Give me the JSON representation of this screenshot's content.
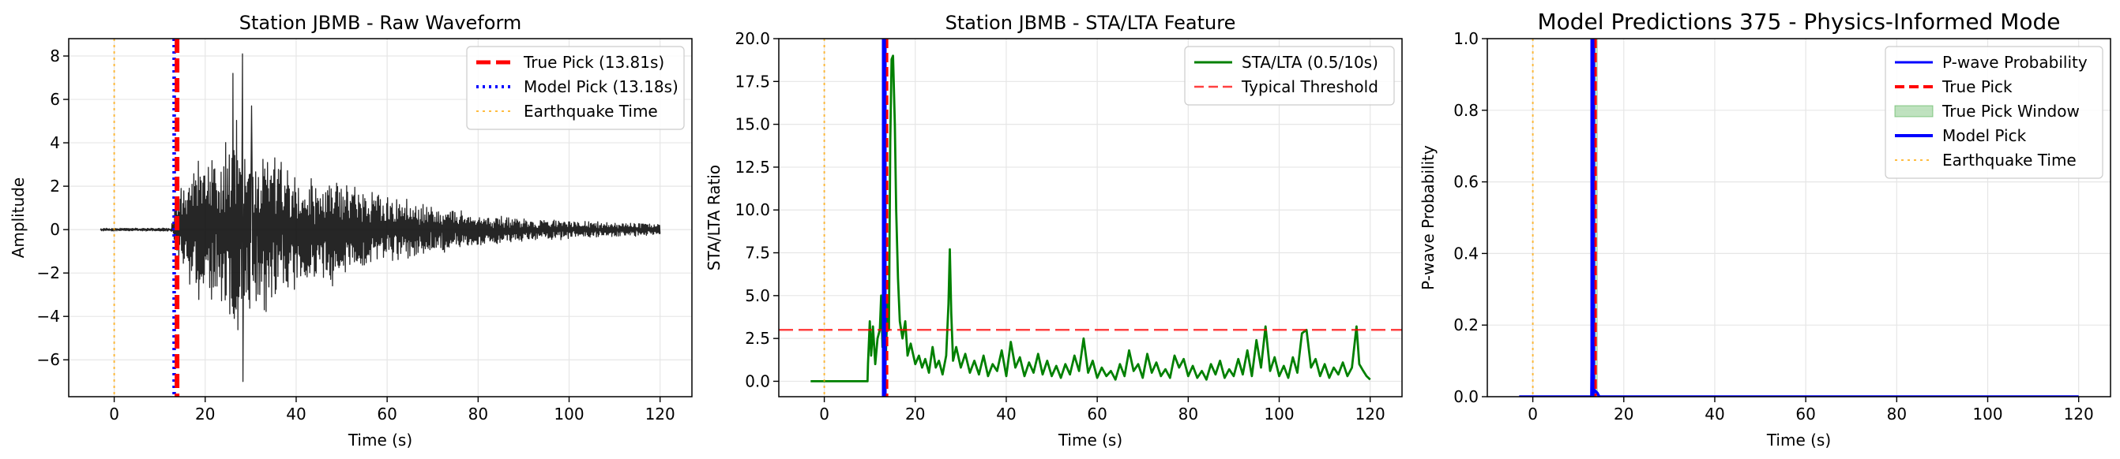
{
  "chart_data": [
    {
      "type": "line",
      "title": "Station JBMB - Raw Waveform",
      "xlabel": "Time (s)",
      "ylabel": "Amplitude",
      "xlim": [
        -10,
        127
      ],
      "ylim": [
        -7.7,
        8.8
      ],
      "xticks": [
        0,
        20,
        40,
        60,
        80,
        100,
        120
      ],
      "yticks": [
        -6,
        -4,
        -2,
        0,
        2,
        4,
        6,
        8
      ],
      "x_tick_labels": [
        "0",
        "20",
        "40",
        "60",
        "80",
        "100",
        "120"
      ],
      "y_tick_labels": [
        "−6",
        "−4",
        "−2",
        "0",
        "2",
        "4",
        "6",
        "8"
      ],
      "grid": true,
      "legend_position": "top-right",
      "series": [
        {
          "kind": "waveform",
          "color": "#000000",
          "x_range": [
            -3,
            120
          ],
          "envelope": [
            [
              -3,
              0.06
            ],
            [
              12.5,
              0.07
            ],
            [
              13.8,
              1.6
            ],
            [
              16,
              2.3
            ],
            [
              19,
              3.0
            ],
            [
              21,
              3.2
            ],
            [
              23,
              3.4
            ],
            [
              25,
              3.8
            ],
            [
              27,
              4.8
            ],
            [
              28,
              4.5
            ],
            [
              29,
              4.0
            ],
            [
              31,
              3.6
            ],
            [
              34,
              3.3
            ],
            [
              37,
              3.0
            ],
            [
              40,
              2.5
            ],
            [
              45,
              2.1
            ],
            [
              48,
              2.3
            ],
            [
              52,
              1.9
            ],
            [
              60,
              1.5
            ],
            [
              70,
              1.0
            ],
            [
              80,
              0.7
            ],
            [
              90,
              0.5
            ],
            [
              100,
              0.4
            ],
            [
              110,
              0.3
            ],
            [
              120,
              0.25
            ]
          ],
          "peaks": [
            [
              26.1,
              7.2
            ],
            [
              28.2,
              8.1
            ],
            [
              28.3,
              -7.0
            ],
            [
              30.2,
              5.7
            ]
          ]
        },
        {
          "name": "True Pick (13.81s)",
          "kind": "vline",
          "x": 13.81,
          "color": "#ff0000",
          "style": "dashed"
        },
        {
          "name": "Model Pick (13.18s)",
          "kind": "vline",
          "x": 13.18,
          "color": "#0000ff",
          "style": "dotted"
        },
        {
          "name": "Earthquake Time",
          "kind": "vline",
          "x": 0,
          "color": "#ffa500",
          "style": "dotted"
        }
      ],
      "legend": [
        "True Pick (13.81s)",
        "Model Pick (13.18s)",
        "Earthquake Time"
      ]
    },
    {
      "type": "line",
      "title": "Station JBMB - STA/LTA Feature",
      "xlabel": "Time (s)",
      "ylabel": "STA/LTA Ratio",
      "xlim": [
        -10,
        127
      ],
      "ylim": [
        -0.9,
        20
      ],
      "xticks": [
        0,
        20,
        40,
        60,
        80,
        100,
        120
      ],
      "yticks": [
        0,
        2.5,
        5,
        7.5,
        10,
        12.5,
        15,
        17.5,
        20
      ],
      "x_tick_labels": [
        "0",
        "20",
        "40",
        "60",
        "80",
        "100",
        "120"
      ],
      "y_tick_labels": [
        "0.0",
        "2.5",
        "5.0",
        "7.5",
        "10.0",
        "12.5",
        "15.0",
        "17.5",
        "20.0"
      ],
      "grid": true,
      "legend_position": "top-right",
      "series": [
        {
          "name": "STA/LTA (0.5/10s)",
          "kind": "line",
          "color": "#008000",
          "points": [
            [
              -3,
              0
            ],
            [
              9.5,
              0
            ],
            [
              9.6,
              1.0
            ],
            [
              10,
              3.5
            ],
            [
              10.3,
              1.5
            ],
            [
              10.7,
              3.2
            ],
            [
              11.2,
              1.0
            ],
            [
              11.7,
              2.5
            ],
            [
              12.2,
              3.0
            ],
            [
              12.5,
              5.0
            ],
            [
              12.8,
              2.0
            ],
            [
              13.2,
              3.8
            ],
            [
              13.5,
              1.2
            ],
            [
              13.9,
              4.5
            ],
            [
              14.2,
              3.0
            ],
            [
              14.5,
              14.0
            ],
            [
              14.8,
              18.8
            ],
            [
              15.1,
              19.0
            ],
            [
              15.5,
              15.0
            ],
            [
              15.8,
              10.0
            ],
            [
              16.2,
              6.0
            ],
            [
              16.6,
              3.5
            ],
            [
              17.2,
              2.5
            ],
            [
              17.8,
              3.5
            ],
            [
              18.3,
              1.5
            ],
            [
              19,
              2.2
            ],
            [
              20,
              1.0
            ],
            [
              20.8,
              1.5
            ],
            [
              21.5,
              0.8
            ],
            [
              22.2,
              1.3
            ],
            [
              23,
              0.5
            ],
            [
              23.8,
              2.0
            ],
            [
              24.5,
              0.8
            ],
            [
              25.2,
              1.2
            ],
            [
              26,
              0.4
            ],
            [
              26.8,
              1.5
            ],
            [
              27.3,
              4.5
            ],
            [
              27.6,
              7.7
            ],
            [
              27.9,
              4.0
            ],
            [
              28.3,
              1.2
            ],
            [
              29,
              2.0
            ],
            [
              30,
              0.8
            ],
            [
              31,
              1.6
            ],
            [
              32,
              0.5
            ],
            [
              33,
              1.2
            ],
            [
              34,
              0.4
            ],
            [
              35,
              1.5
            ],
            [
              36,
              0.3
            ],
            [
              37,
              1.0
            ],
            [
              38,
              0.6
            ],
            [
              39,
              1.8
            ],
            [
              40,
              0.3
            ],
            [
              41,
              2.3
            ],
            [
              42,
              0.8
            ],
            [
              43,
              1.4
            ],
            [
              44,
              0.3
            ],
            [
              45,
              1.1
            ],
            [
              46,
              0.5
            ],
            [
              47,
              1.6
            ],
            [
              48,
              0.4
            ],
            [
              49,
              1.2
            ],
            [
              50,
              0.3
            ],
            [
              51,
              0.9
            ],
            [
              52,
              0.2
            ],
            [
              53,
              1.0
            ],
            [
              54,
              0.4
            ],
            [
              55,
              1.5
            ],
            [
              56,
              0.6
            ],
            [
              57,
              2.5
            ],
            [
              58,
              0.5
            ],
            [
              59,
              1.2
            ],
            [
              60,
              0.2
            ],
            [
              61,
              0.8
            ],
            [
              62,
              0.3
            ],
            [
              63,
              0.6
            ],
            [
              64,
              0.1
            ],
            [
              65,
              1.0
            ],
            [
              66,
              0.3
            ],
            [
              67,
              1.8
            ],
            [
              68,
              0.6
            ],
            [
              69,
              1.0
            ],
            [
              70,
              0.2
            ],
            [
              71,
              1.6
            ],
            [
              72,
              0.5
            ],
            [
              73,
              1.1
            ],
            [
              74,
              0.3
            ],
            [
              75,
              0.7
            ],
            [
              76,
              0.2
            ],
            [
              77,
              1.5
            ],
            [
              78,
              0.8
            ],
            [
              79,
              1.3
            ],
            [
              80,
              0.3
            ],
            [
              81,
              0.9
            ],
            [
              82,
              0.2
            ],
            [
              83,
              0.6
            ],
            [
              84,
              0.1
            ],
            [
              85,
              1.0
            ],
            [
              86,
              0.4
            ],
            [
              87,
              1.2
            ],
            [
              88,
              0.2
            ],
            [
              89,
              0.7
            ],
            [
              90,
              0.3
            ],
            [
              91,
              1.3
            ],
            [
              92,
              0.4
            ],
            [
              93,
              1.8
            ],
            [
              94,
              0.3
            ],
            [
              95,
              2.4
            ],
            [
              96,
              0.8
            ],
            [
              97,
              3.2
            ],
            [
              98,
              0.6
            ],
            [
              99,
              1.4
            ],
            [
              100,
              0.3
            ],
            [
              101,
              0.9
            ],
            [
              102,
              0.2
            ],
            [
              103,
              1.4
            ],
            [
              104,
              0.5
            ],
            [
              105,
              2.8
            ],
            [
              106,
              3.0
            ],
            [
              107,
              0.8
            ],
            [
              108,
              1.3
            ],
            [
              109,
              0.3
            ],
            [
              110,
              1.0
            ],
            [
              111,
              0.2
            ],
            [
              112,
              0.8
            ],
            [
              113,
              0.4
            ],
            [
              114,
              1.1
            ],
            [
              115,
              0.3
            ],
            [
              116,
              0.8
            ],
            [
              117,
              3.2
            ],
            [
              117.6,
              1.0
            ],
            [
              118.5,
              0.6
            ],
            [
              119.2,
              0.3
            ],
            [
              120,
              0.1
            ]
          ]
        },
        {
          "name": "Typical Threshold",
          "kind": "hline",
          "y": 3.0,
          "color": "#ff0000",
          "style": "dashed"
        },
        {
          "kind": "vline",
          "x": 13.81,
          "color": "#ff0000",
          "style": "dashed"
        },
        {
          "kind": "vline",
          "x": 13.18,
          "color": "#0000ff",
          "style": "solid"
        },
        {
          "kind": "vline",
          "x": 0,
          "color": "#ffa500",
          "style": "dotted"
        }
      ],
      "legend": [
        "STA/LTA (0.5/10s)",
        "Typical Threshold"
      ]
    },
    {
      "type": "line",
      "title": "Model Predictions 375 - Physics-Informed Mode",
      "xlabel": "Time (s)",
      "ylabel": "P-wave Probability",
      "xlim": [
        -10,
        127
      ],
      "ylim": [
        0,
        1
      ],
      "xticks": [
        0,
        20,
        40,
        60,
        80,
        100,
        120
      ],
      "yticks": [
        0,
        0.2,
        0.4,
        0.6,
        0.8,
        1.0
      ],
      "x_tick_labels": [
        "0",
        "20",
        "40",
        "60",
        "80",
        "100",
        "120"
      ],
      "y_tick_labels": [
        "0.0",
        "0.2",
        "0.4",
        "0.6",
        "0.8",
        "1.0"
      ],
      "grid": true,
      "legend_position": "top-right",
      "series": [
        {
          "name": "P-wave Probability",
          "kind": "line",
          "color": "#0000ff",
          "points": [
            [
              -3,
              0
            ],
            [
              12.9,
              0
            ],
            [
              13.0,
              0.15
            ],
            [
              13.05,
              0.32
            ],
            [
              13.2,
              0.3
            ],
            [
              13.4,
              0.02
            ],
            [
              14.2,
              0.01
            ],
            [
              14.6,
              0
            ],
            [
              120,
              0
            ]
          ]
        },
        {
          "name": "True Pick",
          "kind": "vline",
          "x": 13.81,
          "color": "#ff0000",
          "style": "dashed"
        },
        {
          "name": "True Pick Window",
          "kind": "span",
          "x0": 13.31,
          "x1": 14.31,
          "color": "#2ca02c"
        },
        {
          "name": "Model Pick",
          "kind": "vline",
          "x": 13.18,
          "color": "#0000ff",
          "style": "solid"
        },
        {
          "name": "Earthquake Time",
          "kind": "vline",
          "x": 0,
          "color": "#ffa500",
          "style": "dotted"
        }
      ],
      "legend": [
        "P-wave Probability",
        "True Pick",
        "True Pick Window",
        "Model Pick",
        "Earthquake Time"
      ]
    }
  ]
}
